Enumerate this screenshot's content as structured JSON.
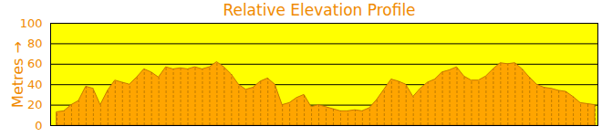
{
  "chart_data": {
    "type": "area",
    "title": "Relative Elevation Profile",
    "y_label": "Metres",
    "values": [
      13,
      14,
      20,
      24,
      38,
      36,
      20,
      34,
      44,
      42,
      40,
      47,
      55,
      52,
      47,
      57,
      55,
      56,
      55,
      57,
      55,
      57,
      62,
      57,
      50,
      40,
      35,
      37,
      43,
      46,
      40,
      20,
      22,
      27,
      30,
      18,
      20,
      18,
      16,
      14,
      14,
      15,
      14,
      17,
      25,
      35,
      45,
      43,
      40,
      28,
      36,
      42,
      45,
      52,
      54,
      57,
      48,
      44,
      44,
      48,
      55,
      61,
      60,
      61,
      55,
      47,
      40,
      37,
      36,
      34,
      33,
      28,
      22,
      21,
      20
    ],
    "color": "#ffa500",
    "ylim": [
      0,
      100
    ],
    "yticks": [
      0,
      20,
      40,
      60,
      80,
      100
    ],
    "grid": true,
    "tick_labels": "y"
  }
}
